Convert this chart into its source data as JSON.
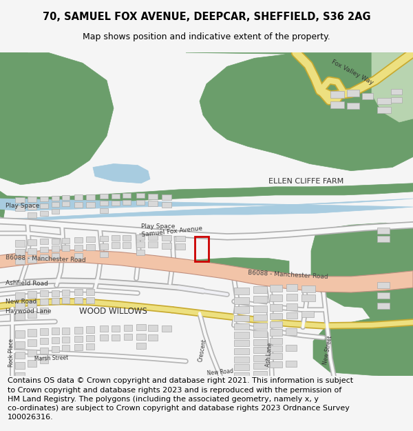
{
  "title_line1": "70, SAMUEL FOX AVENUE, DEEPCAR, SHEFFIELD, S36 2AG",
  "title_line2": "Map shows position and indicative extent of the property.",
  "footer_text": "Contains OS data © Crown copyright and database right 2021. This information is subject to Crown copyright and database rights 2023 and is reproduced with the permission of HM Land Registry. The polygons (including the associated geometry, namely x, y co-ordinates) are subject to Crown copyright and database rights 2023 Ordnance Survey 100026316.",
  "bg_color": "#f5f5f5",
  "map_bg": "#ffffff",
  "green_dark": "#6b9e6b",
  "green_light": "#b8d4b0",
  "green_med": "#7aaa72",
  "road_main_color": "#f2c4a8",
  "water_color": "#a8cce0",
  "building_color": "#d8d8d8",
  "building_outline": "#aaaaaa",
  "yellow_road": "#ede080",
  "property_color": "#cc0000",
  "title_fontsize": 10.5,
  "subtitle_fontsize": 9,
  "footer_fontsize": 8
}
